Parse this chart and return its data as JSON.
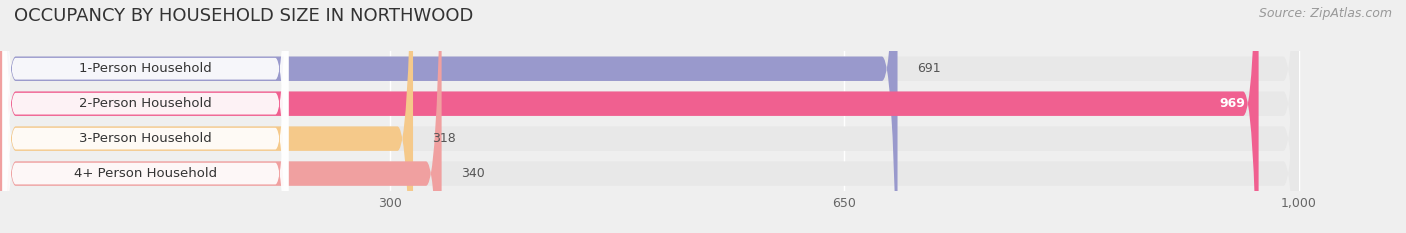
{
  "title": "OCCUPANCY BY HOUSEHOLD SIZE IN NORTHWOOD",
  "source": "Source: ZipAtlas.com",
  "categories": [
    "1-Person Household",
    "2-Person Household",
    "3-Person Household",
    "4+ Person Household"
  ],
  "values": [
    691,
    969,
    318,
    340
  ],
  "bar_colors": [
    "#9999cc",
    "#f06090",
    "#f5c98a",
    "#f0a0a0"
  ],
  "max_val": 1000,
  "xlim_max": 1050,
  "xticks": [
    300,
    650,
    1000
  ],
  "xtick_labels": [
    "300",
    "650",
    "1,000"
  ],
  "background_color": "#efefef",
  "bar_bg_color": "#e2e2e2",
  "row_bg_color": "#e8e8e8",
  "title_fontsize": 13,
  "source_fontsize": 9,
  "label_fontsize": 9.5,
  "value_fontsize": 9
}
